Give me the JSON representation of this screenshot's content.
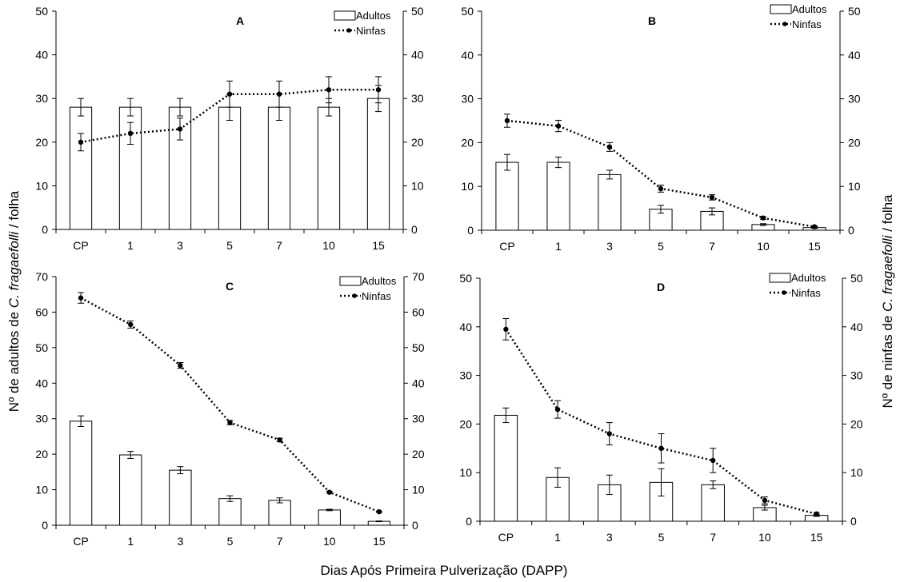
{
  "figure": {
    "ylabel_left": [
      "Nº de adultos de ",
      "C. fragaefolli",
      " / folha"
    ],
    "ylabel_right": [
      "Nº de ninfas de ",
      "C. fragaefolli",
      " / folha"
    ],
    "xlabel": "Dias Após Primeira Pulverização (DAPP)"
  },
  "chart_data": [
    {
      "type": "bar+line",
      "panel": "A",
      "categories": [
        "CP",
        "1",
        "3",
        "5",
        "7",
        "10",
        "15"
      ],
      "ylim": [
        0,
        50
      ],
      "yticks": [
        "0",
        "10",
        "20",
        "30",
        "40",
        "50"
      ],
      "series": [
        {
          "name": "Adultos",
          "type": "bar",
          "values": [
            28,
            28,
            28,
            28,
            28,
            28,
            30
          ],
          "errors": [
            2,
            2,
            2,
            3,
            3,
            2,
            3
          ]
        },
        {
          "name": "Ninfas",
          "type": "line",
          "values": [
            20,
            22,
            23,
            31,
            31,
            32,
            32
          ],
          "errors": [
            2,
            2.5,
            2.5,
            3,
            3,
            3,
            3
          ]
        }
      ]
    },
    {
      "type": "bar+line",
      "panel": "B",
      "categories": [
        "CP",
        "1",
        "3",
        "5",
        "7",
        "10",
        "15"
      ],
      "ylim": [
        0,
        50
      ],
      "yticks": [
        "0",
        "10",
        "20",
        "30",
        "40",
        "50"
      ],
      "series": [
        {
          "name": "Adultos",
          "type": "bar",
          "values": [
            15.5,
            15.5,
            12.7,
            4.8,
            4.3,
            1.3,
            0.6
          ],
          "errors": [
            1.8,
            1.2,
            1.0,
            0.9,
            0.8,
            0.2,
            0.2
          ]
        },
        {
          "name": "Ninfas",
          "type": "line",
          "values": [
            25,
            23.8,
            19,
            9.5,
            7.5,
            2.8,
            0.8
          ],
          "errors": [
            1.5,
            1.3,
            1.0,
            0.8,
            0.6,
            0.3,
            0.2
          ]
        }
      ]
    },
    {
      "type": "bar+line",
      "panel": "C",
      "categories": [
        "CP",
        "1",
        "3",
        "5",
        "7",
        "10",
        "15"
      ],
      "ylim": [
        0,
        70
      ],
      "yticks": [
        "0",
        "10",
        "20",
        "30",
        "40",
        "50",
        "60",
        "70"
      ],
      "series": [
        {
          "name": "Adultos",
          "type": "bar",
          "values": [
            29.3,
            19.8,
            15.5,
            7.5,
            7,
            4.3,
            1.1
          ],
          "errors": [
            1.5,
            1.0,
            1.0,
            0.8,
            0.7,
            0.2,
            0.1
          ]
        },
        {
          "name": "Ninfas",
          "type": "line",
          "values": [
            64,
            56.5,
            45,
            28.9,
            24,
            9.3,
            3.8
          ],
          "errors": [
            1.5,
            1.0,
            0.8,
            0.6,
            0.5,
            0.3,
            0.2
          ]
        }
      ]
    },
    {
      "type": "bar+line",
      "panel": "D",
      "categories": [
        "CP",
        "1",
        "3",
        "5",
        "7",
        "10",
        "15"
      ],
      "ylim": [
        0,
        50
      ],
      "yticks": [
        "0",
        "10",
        "20",
        "30",
        "40",
        "50"
      ],
      "series": [
        {
          "name": "Adultos",
          "type": "bar",
          "values": [
            21.8,
            9,
            7.5,
            8,
            7.5,
            2.8,
            1.2
          ],
          "errors": [
            1.5,
            2.0,
            2.0,
            2.8,
            0.8,
            0.5,
            0.2
          ]
        },
        {
          "name": "Ninfas",
          "type": "line",
          "values": [
            39.5,
            23,
            18,
            15,
            12.5,
            4.3,
            1.5
          ],
          "errors": [
            2.2,
            1.8,
            2.3,
            3.0,
            2.5,
            0.7,
            0.3
          ]
        }
      ]
    }
  ]
}
